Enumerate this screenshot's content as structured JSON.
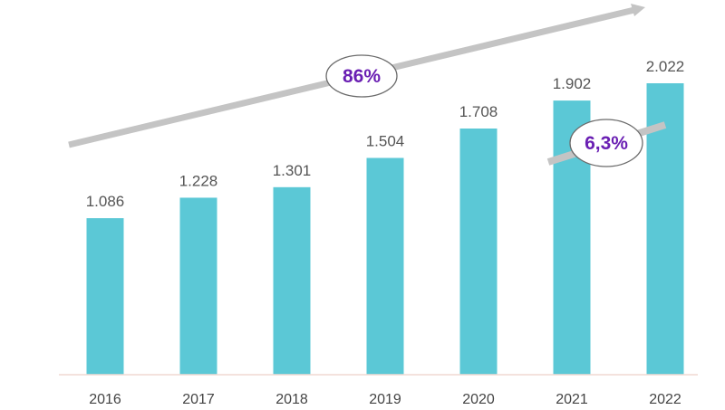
{
  "chart_data": {
    "type": "bar",
    "categories": [
      "2016",
      "2017",
      "2018",
      "2019",
      "2020",
      "2021",
      "2022"
    ],
    "values": [
      1.086,
      1.228,
      1.301,
      1.504,
      1.708,
      1.902,
      2.022
    ],
    "value_labels": [
      "1.086",
      "1.228",
      "1.301",
      "1.504",
      "1.708",
      "1.902",
      "2.022"
    ],
    "ylim": [
      0,
      2.022
    ],
    "grid": false,
    "legend": "none",
    "title": "",
    "xlabel": "",
    "ylabel": "",
    "annotations": [
      {
        "text": "86%",
        "description": "growth 2016-2022"
      },
      {
        "text": "6,3%",
        "description": "growth 2021-2022"
      }
    ],
    "colors": {
      "bar": "#5bc8d6",
      "trend_arrow": "#c4c4c4",
      "callout_text": "#6a1fb3",
      "baseline": "#f0d9d2"
    }
  }
}
